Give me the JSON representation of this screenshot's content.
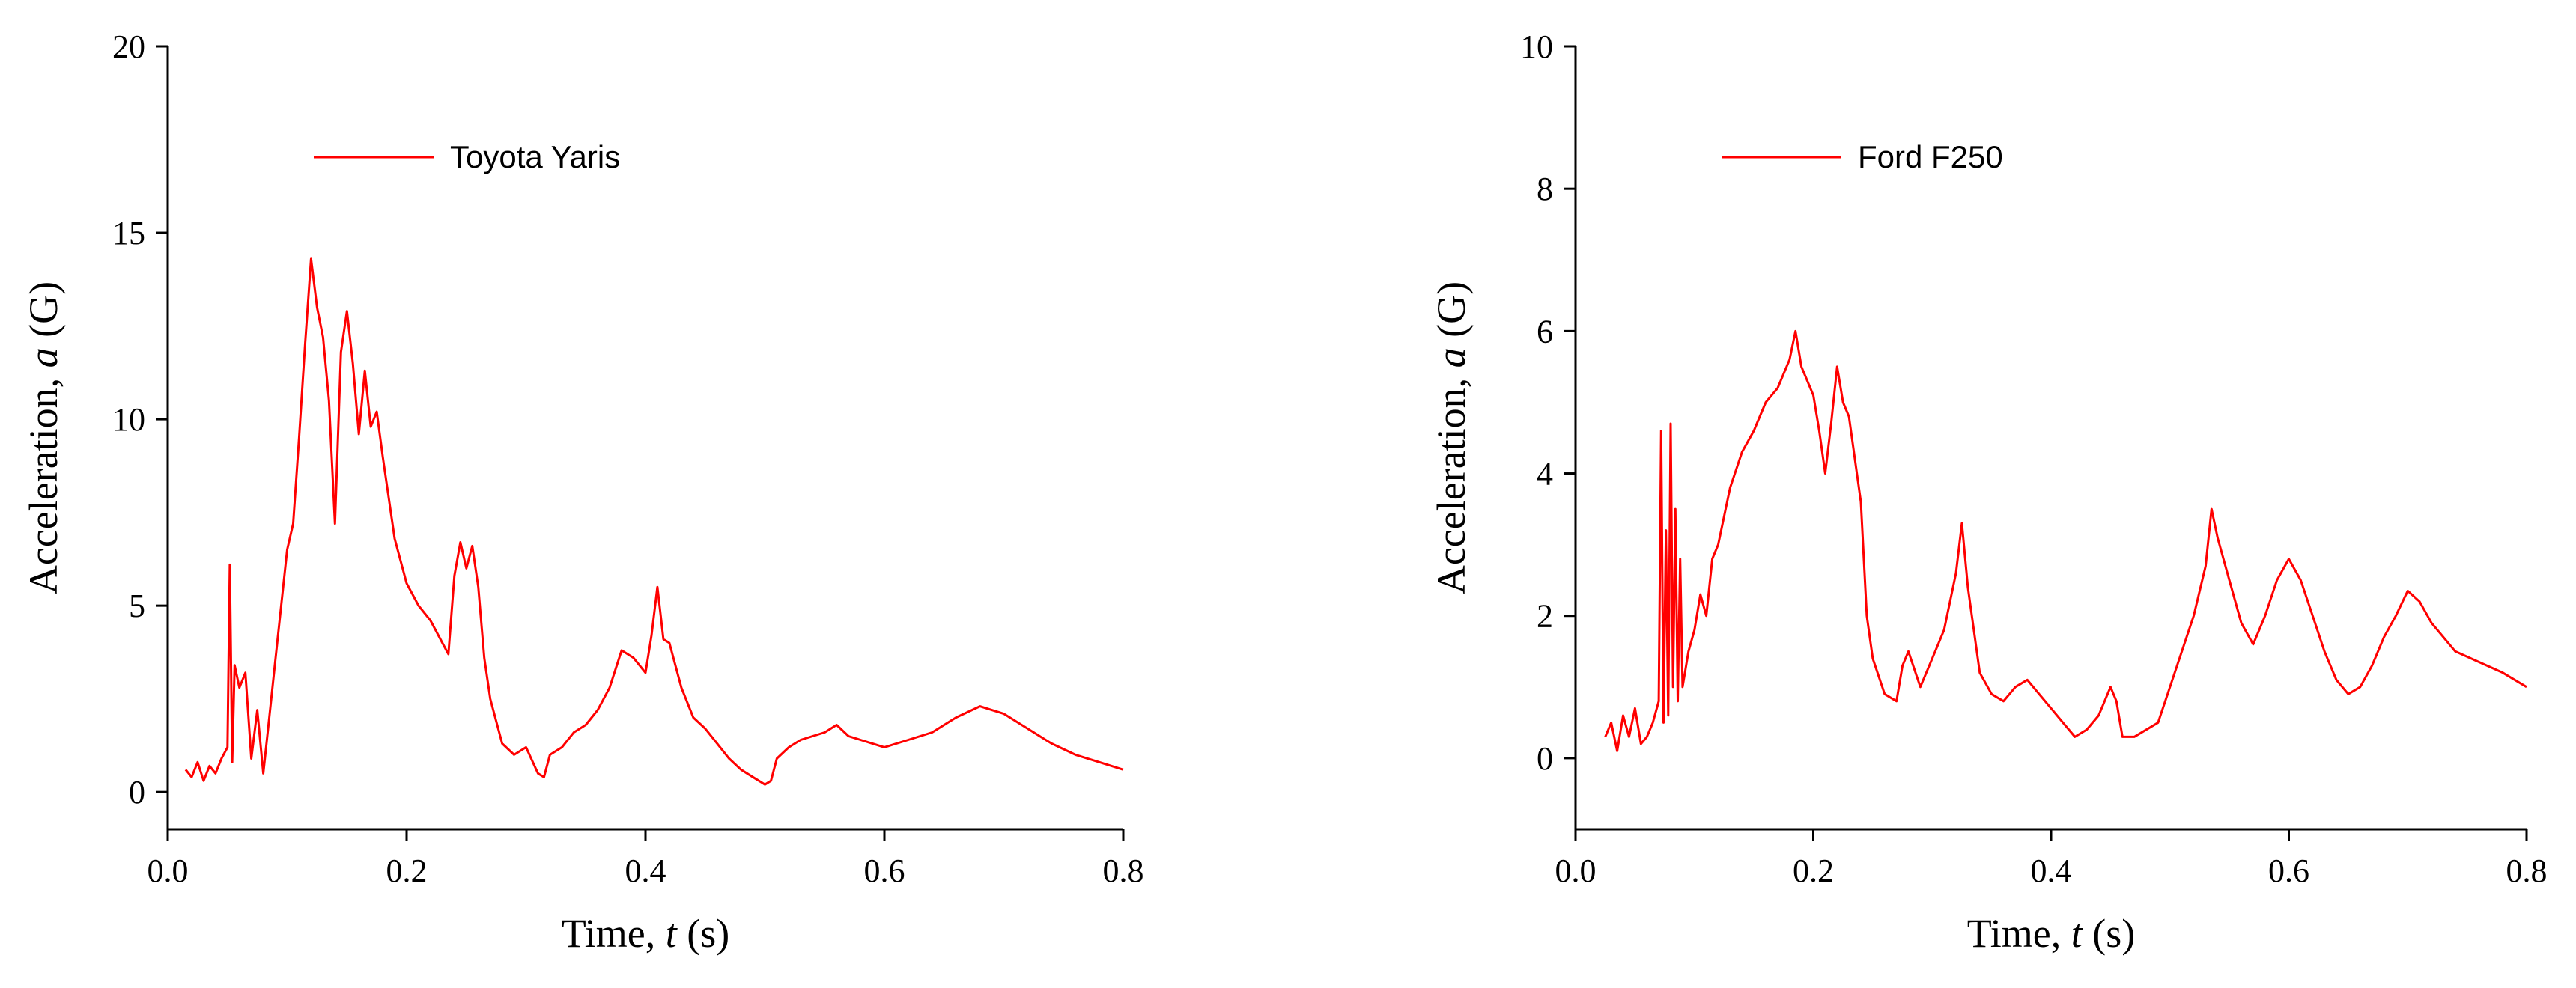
{
  "chart_data": [
    {
      "type": "line",
      "xlabel_prefix": "Time, ",
      "xlabel_var": "t",
      "xlabel_unit": " (s)",
      "ylabel_prefix": "Acceleration, ",
      "ylabel_var": "a",
      "ylabel_unit": " (G)",
      "xlim": [
        0.0,
        0.8
      ],
      "ylim": [
        -1,
        20
      ],
      "xticks": [
        0.0,
        0.2,
        0.4,
        0.6,
        0.8
      ],
      "xtick_labels": [
        "0.0",
        "0.2",
        "0.4",
        "0.6",
        "0.8"
      ],
      "yticks": [
        0,
        5,
        10,
        15,
        20
      ],
      "ytick_labels": [
        "0",
        "5",
        "10",
        "15",
        "20"
      ],
      "legend_position": "top-left",
      "grid": false,
      "series": [
        {
          "name": "Toyota Yaris",
          "color": "#ff0000",
          "x": [
            0.015,
            0.02,
            0.025,
            0.03,
            0.035,
            0.04,
            0.045,
            0.05,
            0.052,
            0.054,
            0.056,
            0.06,
            0.065,
            0.07,
            0.075,
            0.08,
            0.085,
            0.09,
            0.095,
            0.1,
            0.105,
            0.11,
            0.115,
            0.12,
            0.125,
            0.13,
            0.135,
            0.14,
            0.145,
            0.15,
            0.155,
            0.16,
            0.165,
            0.17,
            0.175,
            0.18,
            0.19,
            0.2,
            0.21,
            0.22,
            0.23,
            0.235,
            0.24,
            0.245,
            0.25,
            0.255,
            0.26,
            0.265,
            0.27,
            0.28,
            0.29,
            0.3,
            0.31,
            0.315,
            0.32,
            0.33,
            0.34,
            0.35,
            0.36,
            0.37,
            0.38,
            0.39,
            0.4,
            0.405,
            0.41,
            0.415,
            0.42,
            0.43,
            0.44,
            0.45,
            0.46,
            0.47,
            0.48,
            0.49,
            0.5,
            0.505,
            0.51,
            0.52,
            0.53,
            0.54,
            0.55,
            0.56,
            0.57,
            0.58,
            0.59,
            0.6,
            0.62,
            0.64,
            0.66,
            0.68,
            0.69,
            0.7,
            0.72,
            0.74,
            0.76,
            0.78,
            0.8
          ],
          "y": [
            0.6,
            0.4,
            0.8,
            0.3,
            0.7,
            0.5,
            0.9,
            1.2,
            6.1,
            0.8,
            3.4,
            2.8,
            3.2,
            0.9,
            2.2,
            0.5,
            2.0,
            3.5,
            5.0,
            6.5,
            7.2,
            9.5,
            12.0,
            14.3,
            13.0,
            12.2,
            10.5,
            7.2,
            11.8,
            12.9,
            11.5,
            9.6,
            11.3,
            9.8,
            10.2,
            9.0,
            6.8,
            5.6,
            5.0,
            4.6,
            4.0,
            3.7,
            5.8,
            6.7,
            6.0,
            6.6,
            5.5,
            3.6,
            2.5,
            1.3,
            1.0,
            1.2,
            0.5,
            0.4,
            1.0,
            1.2,
            1.6,
            1.8,
            2.2,
            2.8,
            3.8,
            3.6,
            3.2,
            4.2,
            5.5,
            4.1,
            4.0,
            2.8,
            2.0,
            1.7,
            1.3,
            0.9,
            0.6,
            0.4,
            0.2,
            0.3,
            0.9,
            1.2,
            1.4,
            1.5,
            1.6,
            1.8,
            1.5,
            1.4,
            1.3,
            1.2,
            1.4,
            1.6,
            2.0,
            2.3,
            2.2,
            2.1,
            1.7,
            1.3,
            1.0,
            0.8,
            0.6
          ]
        }
      ]
    },
    {
      "type": "line",
      "xlabel_prefix": "Time, ",
      "xlabel_var": "t",
      "xlabel_unit": " (s)",
      "ylabel_prefix": "Acceleration, ",
      "ylabel_var": "a",
      "ylabel_unit": " (G)",
      "xlim": [
        0.0,
        0.8
      ],
      "ylim": [
        -1,
        10
      ],
      "xticks": [
        0.0,
        0.2,
        0.4,
        0.6,
        0.8
      ],
      "xtick_labels": [
        "0.0",
        "0.2",
        "0.4",
        "0.6",
        "0.8"
      ],
      "yticks": [
        0,
        2,
        4,
        6,
        8,
        10
      ],
      "ytick_labels": [
        "0",
        "2",
        "4",
        "6",
        "8",
        "10"
      ],
      "legend_position": "top-left",
      "grid": false,
      "series": [
        {
          "name": "Ford F250",
          "color": "#ff0000",
          "x": [
            0.025,
            0.03,
            0.035,
            0.04,
            0.045,
            0.05,
            0.055,
            0.06,
            0.065,
            0.07,
            0.072,
            0.074,
            0.076,
            0.078,
            0.08,
            0.082,
            0.084,
            0.086,
            0.088,
            0.09,
            0.095,
            0.1,
            0.105,
            0.11,
            0.115,
            0.12,
            0.13,
            0.14,
            0.15,
            0.16,
            0.17,
            0.18,
            0.185,
            0.19,
            0.2,
            0.205,
            0.21,
            0.215,
            0.22,
            0.225,
            0.23,
            0.24,
            0.245,
            0.25,
            0.26,
            0.27,
            0.275,
            0.28,
            0.29,
            0.3,
            0.31,
            0.32,
            0.325,
            0.33,
            0.34,
            0.35,
            0.36,
            0.37,
            0.38,
            0.39,
            0.4,
            0.41,
            0.42,
            0.43,
            0.44,
            0.45,
            0.455,
            0.46,
            0.47,
            0.48,
            0.49,
            0.5,
            0.51,
            0.52,
            0.53,
            0.535,
            0.54,
            0.55,
            0.56,
            0.57,
            0.58,
            0.59,
            0.6,
            0.61,
            0.62,
            0.63,
            0.64,
            0.65,
            0.66,
            0.67,
            0.68,
            0.69,
            0.7,
            0.71,
            0.72,
            0.74,
            0.76,
            0.78,
            0.8
          ],
          "y": [
            0.3,
            0.5,
            0.1,
            0.6,
            0.3,
            0.7,
            0.2,
            0.3,
            0.5,
            0.8,
            4.6,
            0.5,
            3.2,
            0.6,
            4.7,
            1.0,
            3.5,
            0.8,
            2.8,
            1.0,
            1.5,
            1.8,
            2.3,
            2.0,
            2.8,
            3.0,
            3.8,
            4.3,
            4.6,
            5.0,
            5.2,
            5.6,
            6.0,
            5.5,
            5.1,
            4.6,
            4.0,
            4.7,
            5.5,
            5.0,
            4.8,
            3.6,
            2.0,
            1.4,
            0.9,
            0.8,
            1.3,
            1.5,
            1.0,
            1.4,
            1.8,
            2.6,
            3.3,
            2.4,
            1.2,
            0.9,
            0.8,
            1.0,
            1.1,
            0.9,
            0.7,
            0.5,
            0.3,
            0.4,
            0.6,
            1.0,
            0.8,
            0.3,
            0.3,
            0.4,
            0.5,
            1.0,
            1.5,
            2.0,
            2.7,
            3.5,
            3.1,
            2.5,
            1.9,
            1.6,
            2.0,
            2.5,
            2.8,
            2.5,
            2.0,
            1.5,
            1.1,
            0.9,
            1.0,
            1.3,
            1.7,
            2.0,
            2.35,
            2.2,
            1.9,
            1.5,
            1.35,
            1.2,
            1.0
          ]
        }
      ]
    }
  ]
}
